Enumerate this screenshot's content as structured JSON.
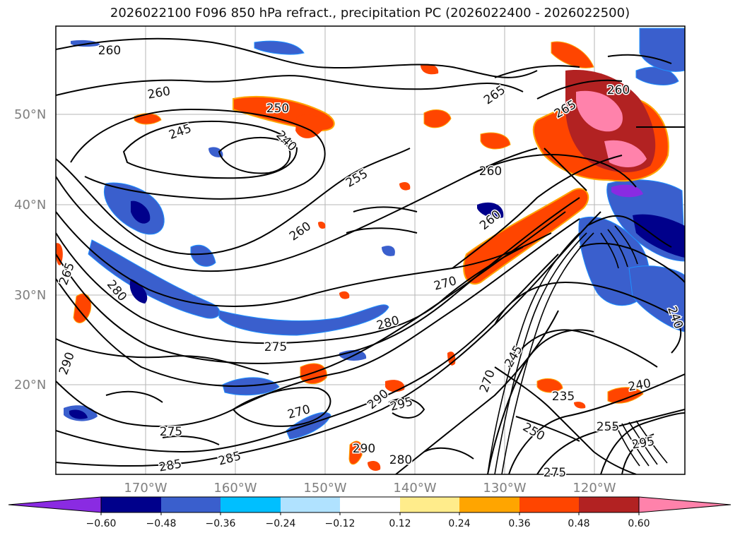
{
  "title": "2026022100 F096 850 hPa refract., precipitation PC (2026022400 - 2026022500)",
  "lat_labels": [
    "50°N",
    "40°N",
    "30°N",
    "20°N"
  ],
  "lon_labels": [
    "170°W",
    "160°W",
    "150°W",
    "140°W",
    "130°W",
    "120°W"
  ],
  "colorbar": {
    "colors": [
      "#8a2be2",
      "#00008b",
      "#3a5fcd",
      "#00bfff",
      "#b0e2ff",
      "#ffffff",
      "#ffec8b",
      "#ffa500",
      "#ff4500",
      "#b22222",
      "#ff82ab"
    ],
    "ticks": [
      "−0.60",
      "−0.48",
      "−0.36",
      "−0.24",
      "−0.12",
      "0.12",
      "0.24",
      "0.36",
      "0.48",
      "0.60"
    ]
  },
  "contour_labels": [
    "260",
    "260",
    "265",
    "265",
    "250",
    "245",
    "240",
    "255",
    "260",
    "260",
    "260",
    "270",
    "280",
    "275",
    "265",
    "280",
    "290",
    "270",
    "275",
    "285",
    "285",
    "290",
    "295",
    "290",
    "280",
    "260",
    "245",
    "270",
    "250",
    "235",
    "240",
    "255",
    "295",
    "275",
    "240"
  ]
}
